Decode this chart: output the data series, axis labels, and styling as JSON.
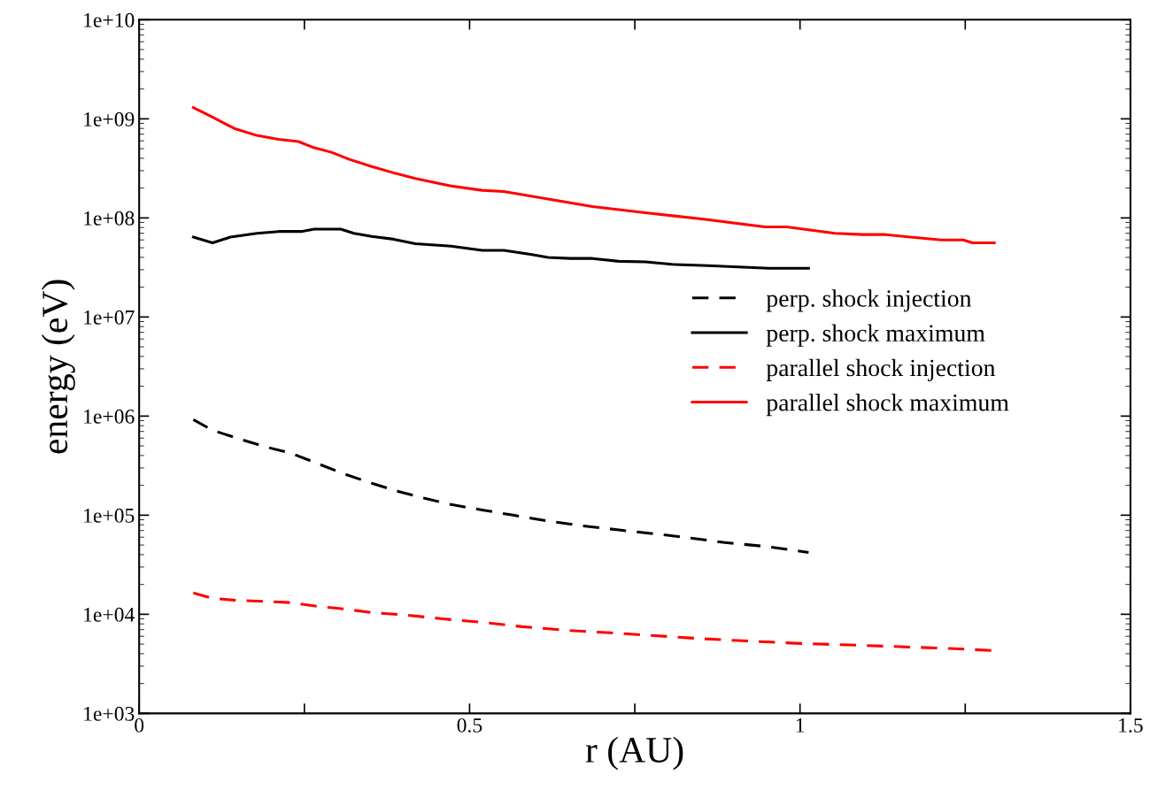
{
  "chart_data": {
    "type": "line",
    "xlabel": "r (AU)",
    "ylabel": "energy (eV)",
    "log": "y",
    "xlim": [
      0,
      1.5
    ],
    "xticks": [
      0,
      {
        "value": 0.25,
        "label": null
      },
      0.5,
      {
        "value": 0.75,
        "label": null
      },
      1,
      {
        "value": 1.25,
        "label": null
      },
      1.5
    ],
    "ylim": [
      1000,
      10000000000
    ],
    "yticks": [
      {
        "value": 1000,
        "label": "1e+03"
      },
      {
        "value": 10000,
        "label": "1e+04"
      },
      {
        "value": 100000,
        "label": "1e+05"
      },
      {
        "value": 1000000,
        "label": "1e+06"
      },
      {
        "value": 10000000,
        "label": "1e+07"
      },
      {
        "value": 100000000,
        "label": "1e+08"
      },
      {
        "value": 1000000000,
        "label": "1e+09"
      },
      {
        "value": 10000000000,
        "label": "1e+10"
      }
    ],
    "grid": false,
    "legend": "right",
    "marker": "none",
    "series": [
      {
        "name": "perp. shock injection",
        "color": "#000000",
        "line_style": "dashed",
        "x": [
          0.082,
          0.111,
          0.151,
          0.191,
          0.231,
          0.271,
          0.311,
          0.352,
          0.392,
          0.432,
          0.472,
          0.519,
          0.566,
          0.619,
          0.672,
          0.726,
          0.779,
          0.833,
          0.886,
          0.953,
          1.013
        ],
        "values": [
          920000,
          720000,
          590000,
          490000,
          420000,
          330000,
          260000,
          210000,
          174000,
          148000,
          128000,
          113000,
          100000,
          87000,
          78000,
          71000,
          65000,
          59000,
          53000,
          48000,
          42000
        ]
      },
      {
        "name": "perp. shock maximum",
        "color": "#000000",
        "line_style": "solid",
        "x": [
          0.082,
          0.111,
          0.138,
          0.178,
          0.211,
          0.245,
          0.265,
          0.305,
          0.325,
          0.352,
          0.385,
          0.418,
          0.472,
          0.519,
          0.552,
          0.592,
          0.619,
          0.652,
          0.686,
          0.726,
          0.766,
          0.806,
          0.86,
          0.953,
          1.013
        ],
        "values": [
          64000000,
          56000000,
          64000000,
          70000000,
          73000000,
          73000000,
          77000000,
          77000000,
          70000000,
          65000000,
          61000000,
          55000000,
          52000000,
          47000000,
          47000000,
          43000000,
          40000000,
          39000000,
          39000000,
          36500000,
          36000000,
          34000000,
          33000000,
          31000000,
          31000000
        ]
      },
      {
        "name": "parallel shock injection",
        "color": "#ff0000",
        "line_style": "dashed",
        "x": [
          0.082,
          0.111,
          0.144,
          0.178,
          0.231,
          0.271,
          0.311,
          0.352,
          0.405,
          0.459,
          0.519,
          0.579,
          0.646,
          0.713,
          0.779,
          0.846,
          0.913,
          0.993,
          1.074,
          1.154,
          1.234,
          1.294
        ],
        "values": [
          16400,
          14500,
          13900,
          13600,
          13100,
          12000,
          11300,
          10400,
          9800,
          9000,
          8300,
          7500,
          6900,
          6500,
          6100,
          5700,
          5400,
          5100,
          4900,
          4700,
          4500,
          4300
        ]
      },
      {
        "name": "parallel shock maximum",
        "color": "#ff0000",
        "line_style": "solid",
        "x": [
          0.082,
          0.111,
          0.144,
          0.178,
          0.211,
          0.241,
          0.265,
          0.291,
          0.318,
          0.352,
          0.385,
          0.418,
          0.472,
          0.519,
          0.552,
          0.619,
          0.686,
          0.766,
          0.86,
          0.947,
          0.98,
          1.053,
          1.094,
          1.127,
          1.167,
          1.214,
          1.247,
          1.261,
          1.294
        ],
        "values": [
          1300000000,
          1040000000,
          800000000,
          680000000,
          620000000,
          590000000,
          510000000,
          460000000,
          390000000,
          330000000,
          285000000,
          250000000,
          210000000,
          190000000,
          185000000,
          155000000,
          130000000,
          113000000,
          96000000,
          81000000,
          81000000,
          70000000,
          68000000,
          68000000,
          64000000,
          60000000,
          60000000,
          56000000,
          56000000
        ]
      }
    ]
  }
}
